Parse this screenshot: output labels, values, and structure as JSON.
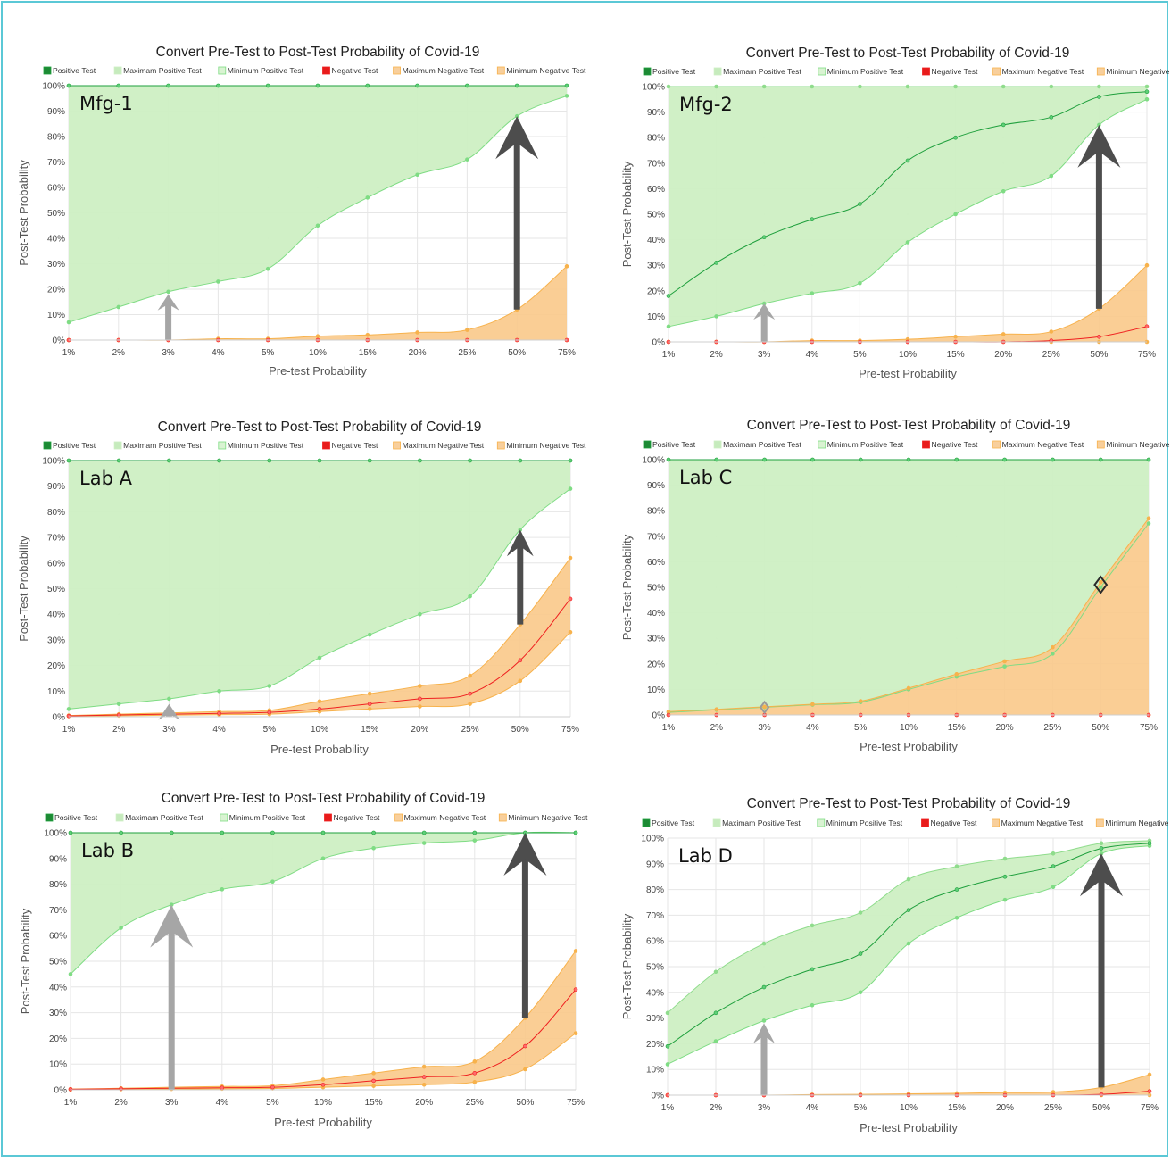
{
  "colors": {
    "positive": "#1e9f3c",
    "max_positive_fill": "#cdefc3",
    "min_positive_line": "#7fdc84",
    "negative": "#ef2020",
    "negative_fill": "#f9c98a",
    "negative_edge": "#f7b24c",
    "grid": "#e6e6e6",
    "arrow_light": "#a6a6a6",
    "arrow_dark": "#4d4d4d"
  },
  "chart_data": [
    {
      "type": "area",
      "panel": "Mfg-1",
      "title": "Convert Pre-Test to Post-Test Probability of Covid-19",
      "xlabel": "Pre-test Probability",
      "ylabel": "Post-Test Probability",
      "categories": [
        "1%",
        "2%",
        "3%",
        "4%",
        "5%",
        "10%",
        "15%",
        "20%",
        "25%",
        "50%",
        "75%"
      ],
      "ylim": [
        0,
        100
      ],
      "yticks": [
        "0%",
        "10%",
        "20%",
        "30%",
        "40%",
        "50%",
        "60%",
        "70%",
        "80%",
        "90%",
        "100%"
      ],
      "legend": [
        "Positive Test",
        "Maximam Positive Test",
        "Minimum Positive Test",
        "Negative Test",
        "Maximum Negative Test",
        "Minimum Negative Test"
      ],
      "series": [
        {
          "name": "Positive Test",
          "values": [
            100,
            100,
            100,
            100,
            100,
            100,
            100,
            100,
            100,
            100,
            100
          ]
        },
        {
          "name": "Maximam Positive Test",
          "values": [
            100,
            100,
            100,
            100,
            100,
            100,
            100,
            100,
            100,
            100,
            100
          ]
        },
        {
          "name": "Minimum Positive Test",
          "values": [
            7,
            13,
            19,
            23,
            28,
            45,
            56,
            65,
            71,
            88,
            96
          ]
        },
        {
          "name": "Negative Test",
          "values": [
            0,
            0,
            0,
            0,
            0,
            0,
            0,
            0,
            0,
            0,
            0
          ]
        },
        {
          "name": "Maximum Negative Test",
          "values": [
            0,
            0,
            0,
            0.5,
            0.5,
            1.5,
            2,
            3,
            4,
            12,
            29
          ]
        },
        {
          "name": "Minimum Negative Test",
          "values": [
            0,
            0,
            0,
            0,
            0,
            0,
            0,
            0,
            0,
            0,
            0
          ]
        }
      ],
      "arrows": [
        {
          "category_index": 2,
          "from": 0,
          "to": 18,
          "style": "light"
        },
        {
          "category_index": 9,
          "from": 12,
          "to": 88,
          "style": "dark"
        }
      ],
      "markers": []
    },
    {
      "type": "area",
      "panel": "Mfg-2",
      "title": "Convert Pre-Test to Post-Test Probability of Covid-19",
      "xlabel": "Pre-test Probability",
      "ylabel": "Post-Test Probability",
      "categories": [
        "1%",
        "2%",
        "3%",
        "4%",
        "5%",
        "10%",
        "15%",
        "20%",
        "25%",
        "50%",
        "75%"
      ],
      "ylim": [
        0,
        100
      ],
      "yticks": [
        "0%",
        "10%",
        "20%",
        "30%",
        "40%",
        "50%",
        "60%",
        "70%",
        "80%",
        "90%",
        "100%"
      ],
      "legend": [
        "Positive Test",
        "Maximam Positive Test",
        "Minimum Positive Test",
        "Negative Test",
        "Maximum Negative Test",
        "Minimum Negative Test"
      ],
      "series": [
        {
          "name": "Positive Test",
          "values": [
            18,
            31,
            41,
            48,
            54,
            71,
            80,
            85,
            88,
            96,
            98
          ]
        },
        {
          "name": "Maximam Positive Test",
          "values": [
            100,
            100,
            100,
            100,
            100,
            100,
            100,
            100,
            100,
            100,
            100
          ]
        },
        {
          "name": "Minimum Positive Test",
          "values": [
            6,
            10,
            15,
            19,
            23,
            39,
            50,
            59,
            65,
            85,
            95
          ]
        },
        {
          "name": "Negative Test",
          "values": [
            0,
            0,
            0,
            0,
            0,
            0,
            0,
            0,
            0.5,
            2,
            6
          ]
        },
        {
          "name": "Maximum Negative Test",
          "values": [
            0,
            0,
            0,
            0.5,
            0.5,
            1,
            2,
            3,
            4,
            13,
            30
          ]
        },
        {
          "name": "Minimum Negative Test",
          "values": [
            0,
            0,
            0,
            0,
            0,
            0,
            0,
            0,
            0,
            0,
            0
          ]
        }
      ],
      "arrows": [
        {
          "category_index": 2,
          "from": 0,
          "to": 15,
          "style": "light"
        },
        {
          "category_index": 9,
          "from": 13,
          "to": 85,
          "style": "dark"
        }
      ],
      "markers": []
    },
    {
      "type": "area",
      "panel": "Lab A",
      "title": "Convert Pre-Test to Post-Test Probability of Covid-19",
      "xlabel": "Pre-test Probability",
      "ylabel": "Post-Test Probability",
      "categories": [
        "1%",
        "2%",
        "3%",
        "4%",
        "5%",
        "10%",
        "15%",
        "20%",
        "25%",
        "50%",
        "75%"
      ],
      "ylim": [
        0,
        100
      ],
      "yticks": [
        "0%",
        "10%",
        "20%",
        "30%",
        "40%",
        "50%",
        "60%",
        "70%",
        "80%",
        "90%",
        "100%"
      ],
      "legend": [
        "Positive Test",
        "Maximam Positive Test",
        "Minimum Positive Test",
        "Negative Test",
        "Maximum Negative Test",
        "Minimum Negative Test"
      ],
      "series": [
        {
          "name": "Positive Test",
          "values": [
            100,
            100,
            100,
            100,
            100,
            100,
            100,
            100,
            100,
            100,
            100
          ]
        },
        {
          "name": "Maximam Positive Test",
          "values": [
            100,
            100,
            100,
            100,
            100,
            100,
            100,
            100,
            100,
            100,
            100
          ]
        },
        {
          "name": "Minimum Positive Test",
          "values": [
            3,
            5,
            7,
            10,
            12,
            23,
            32,
            40,
            47,
            73,
            89
          ]
        },
        {
          "name": "Negative Test",
          "values": [
            0.3,
            0.7,
            1,
            1.3,
            1.7,
            3,
            5,
            7,
            9,
            22,
            46
          ]
        },
        {
          "name": "Maximum Negative Test",
          "values": [
            0.5,
            1,
            1.5,
            2,
            2.5,
            6,
            9,
            12,
            16,
            36,
            62
          ]
        },
        {
          "name": "Minimum Negative Test",
          "values": [
            0.2,
            0.4,
            0.6,
            0.8,
            1,
            2,
            3,
            4,
            5,
            14,
            33
          ]
        }
      ],
      "arrows": [
        {
          "category_index": 2,
          "from": 0,
          "to": 5,
          "style": "light"
        },
        {
          "category_index": 9,
          "from": 36,
          "to": 73,
          "style": "dark"
        }
      ],
      "markers": []
    },
    {
      "type": "area",
      "panel": "Lab C",
      "title": "Convert Pre-Test to Post-Test Probability of Covid-19",
      "xlabel": "Pre-test Probability",
      "ylabel": "Post-Test Probability",
      "categories": [
        "1%",
        "2%",
        "3%",
        "4%",
        "5%",
        "10%",
        "15%",
        "20%",
        "25%",
        "50%",
        "75%"
      ],
      "ylim": [
        0,
        100
      ],
      "yticks": [
        "0%",
        "10%",
        "20%",
        "30%",
        "40%",
        "50%",
        "60%",
        "70%",
        "80%",
        "90%",
        "100%"
      ],
      "legend": [
        "Positive Test",
        "Maximam Positive Test",
        "Minimum Positive Test",
        "Negative Test",
        "Maximum Negative Test",
        "Minimum Negative Test"
      ],
      "series": [
        {
          "name": "Positive Test",
          "values": [
            100,
            100,
            100,
            100,
            100,
            100,
            100,
            100,
            100,
            100,
            100
          ]
        },
        {
          "name": "Maximam Positive Test",
          "values": [
            100,
            100,
            100,
            100,
            100,
            100,
            100,
            100,
            100,
            100,
            100
          ]
        },
        {
          "name": "Minimum Positive Test",
          "values": [
            1,
            2,
            3,
            4,
            5,
            10,
            15,
            19,
            24,
            50,
            75
          ]
        },
        {
          "name": "Negative Test",
          "values": [
            0,
            0,
            0,
            0,
            0,
            0,
            0,
            0,
            0,
            0,
            0
          ]
        },
        {
          "name": "Maximum Negative Test",
          "values": [
            1.3,
            2.2,
            3.2,
            4.2,
            5.4,
            10.5,
            16,
            21,
            26.5,
            52,
            77
          ]
        },
        {
          "name": "Minimum Negative Test",
          "values": [
            0,
            0,
            0,
            0,
            0,
            0,
            0,
            0,
            0,
            0,
            0
          ]
        }
      ],
      "arrows": [],
      "markers": [
        {
          "category_index": 2,
          "value": 3,
          "style": "light"
        },
        {
          "category_index": 9,
          "value": 51,
          "style": "dark"
        }
      ]
    },
    {
      "type": "area",
      "panel": "Lab B",
      "title": "Convert Pre-Test to Post-Test Probability of Covid-19",
      "xlabel": "Pre-test Probability",
      "ylabel": "Post-Test Probability",
      "categories": [
        "1%",
        "2%",
        "3%",
        "4%",
        "5%",
        "10%",
        "15%",
        "20%",
        "25%",
        "50%",
        "75%"
      ],
      "ylim": [
        0,
        100
      ],
      "yticks": [
        "0%",
        "10%",
        "20%",
        "30%",
        "40%",
        "50%",
        "60%",
        "70%",
        "80%",
        "90%",
        "100%"
      ],
      "legend": [
        "Positive Test",
        "Maximam Positive Test",
        "Minimum Positive Test",
        "Negative Test",
        "Maximum Negative Test",
        "Minimum Negative Test"
      ],
      "series": [
        {
          "name": "Positive Test",
          "values": [
            100,
            100,
            100,
            100,
            100,
            100,
            100,
            100,
            100,
            100,
            100
          ]
        },
        {
          "name": "Maximam Positive Test",
          "values": [
            100,
            100,
            100,
            100,
            100,
            100,
            100,
            100,
            100,
            100,
            100
          ]
        },
        {
          "name": "Minimum Positive Test",
          "values": [
            45,
            63,
            72,
            78,
            81,
            90,
            94,
            96,
            97,
            100,
            100
          ]
        },
        {
          "name": "Negative Test",
          "values": [
            0.2,
            0.4,
            0.6,
            0.8,
            1,
            2,
            3.5,
            5,
            6.5,
            17,
            39
          ]
        },
        {
          "name": "Maximum Negative Test",
          "values": [
            0.3,
            0.6,
            1,
            1.3,
            1.6,
            4,
            6.5,
            9,
            11,
            28,
            54
          ]
        },
        {
          "name": "Minimum Negative Test",
          "values": [
            0.1,
            0.2,
            0.3,
            0.4,
            0.5,
            1,
            1.5,
            2,
            3,
            8,
            22
          ]
        }
      ],
      "arrows": [
        {
          "category_index": 2,
          "from": 0,
          "to": 72,
          "style": "light"
        },
        {
          "category_index": 9,
          "from": 28,
          "to": 100,
          "style": "dark"
        }
      ],
      "markers": []
    },
    {
      "type": "area",
      "panel": "Lab D",
      "title": "Convert Pre-Test to Post-Test Probability of Covid-19",
      "xlabel": "Pre-test Probability",
      "ylabel": "Post-Test Probability",
      "categories": [
        "1%",
        "2%",
        "3%",
        "4%",
        "5%",
        "10%",
        "15%",
        "20%",
        "25%",
        "50%",
        "75%"
      ],
      "ylim": [
        0,
        100
      ],
      "yticks": [
        "0%",
        "10%",
        "20%",
        "30%",
        "40%",
        "50%",
        "60%",
        "70%",
        "80%",
        "90%",
        "100%"
      ],
      "legend": [
        "Positive Test",
        "Maximam Positive Test",
        "Minimum Positive Test",
        "Negative Test",
        "Maximum Negative Test",
        "Minimum Negative Test"
      ],
      "series": [
        {
          "name": "Positive Test",
          "values": [
            19,
            32,
            42,
            49,
            55,
            72,
            80,
            85,
            89,
            96,
            98
          ]
        },
        {
          "name": "Maximam Positive Test",
          "values": [
            32,
            48,
            59,
            66,
            71,
            84,
            89,
            92,
            94,
            98,
            99
          ]
        },
        {
          "name": "Minimum Positive Test",
          "values": [
            12,
            21,
            29,
            35,
            40,
            59,
            69,
            76,
            81,
            94,
            97
          ]
        },
        {
          "name": "Negative Test",
          "values": [
            0,
            0,
            0,
            0,
            0,
            0,
            0,
            0,
            0,
            0.3,
            1.5
          ]
        },
        {
          "name": "Maximum Negative Test",
          "values": [
            0,
            0,
            0,
            0.2,
            0.3,
            0.5,
            0.7,
            1,
            1.2,
            3,
            8
          ]
        },
        {
          "name": "Minimum Negative Test",
          "values": [
            0,
            0,
            0,
            0,
            0,
            0,
            0,
            0,
            0,
            0,
            0
          ]
        }
      ],
      "arrows": [
        {
          "category_index": 2,
          "from": 0,
          "to": 28,
          "style": "light"
        },
        {
          "category_index": 9,
          "from": 3,
          "to": 94,
          "style": "dark"
        }
      ],
      "markers": []
    }
  ]
}
